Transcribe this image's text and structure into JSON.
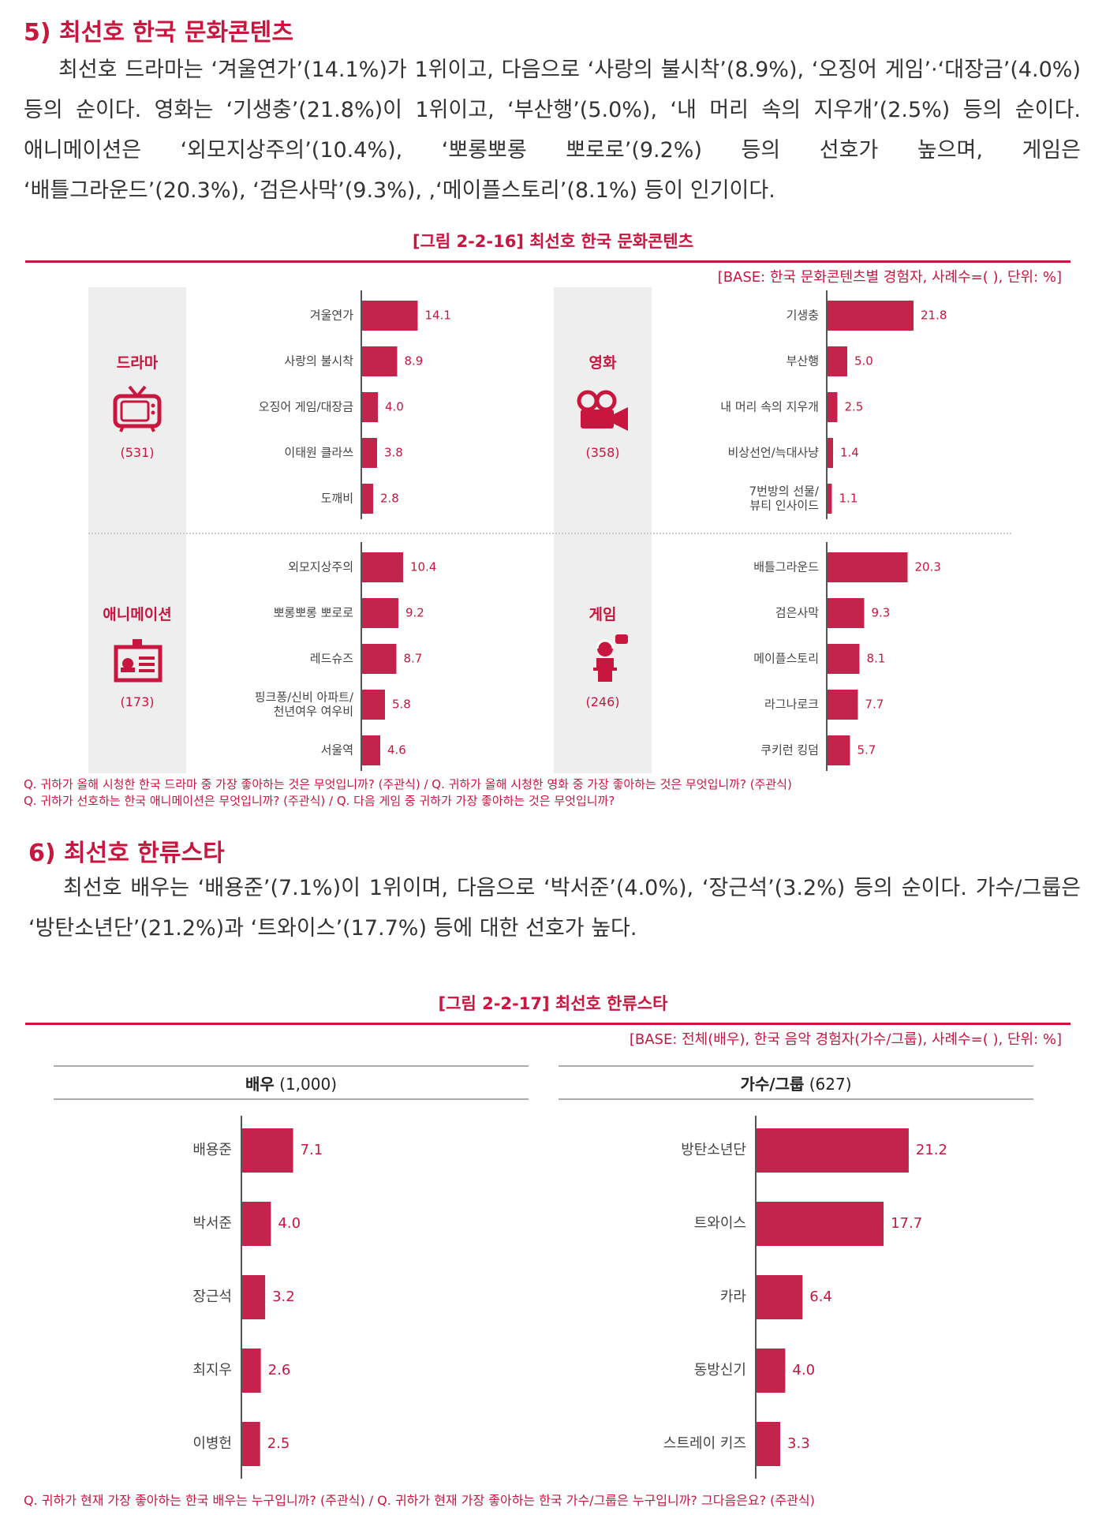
{
  "section5": {
    "title": "5) 최선호 한국 문화콘텐츠",
    "text": "최선호 드라마는 ‘겨울연가’(14.1%)가 1위이고, 다음으로 ‘사랑의 불시착’(8.9%), ‘오징어 게임’·‘대장금’(4.0%) 등의 순이다. 영화는 ‘기생충’(21.8%)이 1위이고, ‘부산행’(5.0%), ‘내 머리 속의 지우개’(2.5%) 등의 순이다. 애니메이션은 ‘외모지상주의’(10.4%), ‘뽀롱뽀롱 뽀로로’(9.2%) 등의 선호가 높으며, 게임은 ‘배틀그라운드’(20.3%), ‘검은사막’(9.3%), ,‘메이플스토리’(8.1%) 등이 인기이다."
  },
  "figure16": {
    "title": "[그림 2-2-16] 최선호 한국 문화콘텐츠",
    "base": "[BASE: 한국 문화콘텐츠별 경험자, 사례수=( ), 단위: %]",
    "notes": [
      "Q. 귀하가 올해 시청한 한국 드라마 중 가장 좋아하는 것은 무엇입니까? (주관식) / Q. 귀하가 올해 시청한 영화 중 가장 좋아하는 것은 무엇입니까? (주관식)",
      "Q. 귀하가 선호하는 한국 애니메이션은 무엇입니까? (주관식) / Q. 다음 게임 중 귀하가 가장 좋아하는 것은 무엇입니까?"
    ],
    "panels": [
      {
        "label": "드라마",
        "count": "(531)",
        "icon": "tv-icon"
      },
      {
        "label": "영화",
        "count": "(358)",
        "icon": "movie-camera-icon"
      },
      {
        "label": "애니메이션",
        "count": "(173)",
        "icon": "animation-board-icon"
      },
      {
        "label": "게임",
        "count": "(246)",
        "icon": "gamer-icon"
      }
    ]
  },
  "section6": {
    "title": "6) 최선호 한류스타",
    "text": "최선호 배우는 ‘배용준’(7.1%)이 1위이며, 다음으로 ‘박서준’(4.0%), ‘장근석’(3.2%) 등의 순이다. 가수/그룹은 ‘방탄소년단’(21.2%)과 ‘트와이스’(17.7%) 등에 대한 선호가 높다."
  },
  "figure17": {
    "title": "[그림 2-2-17] 최선호 한류스타",
    "base": "[BASE: 전체(배우), 한국 음악 경험자(가수/그룹), 사례수=( ), 단위: %]",
    "note": "Q. 귀하가 현재 가장 좋아하는 한국 배우는 누구입니까? (주관식) / Q. 귀하가 현재 가장 좋아하는 한국 가수/그룹은 누구입니까? 그다음은요? (주관식)",
    "actors_head": {
      "label": "배우",
      "count": "(1,000)"
    },
    "singers_head": {
      "label": "가수/그룹",
      "count": "(627)"
    }
  },
  "colors": {
    "accent": "#c8163f",
    "bar": "#c4244b",
    "panel_bg": "#eeeeee"
  },
  "chart_data": [
    {
      "type": "bar",
      "orientation": "horizontal",
      "title": "드라마",
      "unit": "%",
      "categories": [
        "겨울연가",
        "사랑의 불시착",
        "오징어 게임/대장금",
        "이태원 클라쓰",
        "도깨비"
      ],
      "values": [
        14.1,
        8.9,
        4.0,
        3.8,
        2.8
      ]
    },
    {
      "type": "bar",
      "orientation": "horizontal",
      "title": "영화",
      "unit": "%",
      "categories": [
        "기생충",
        "부산행",
        "내 머리 속의 지우개",
        "비상선언/늑대사냥",
        "7번방의 선물/뷰티 인사이드"
      ],
      "values": [
        21.8,
        5.0,
        2.5,
        1.4,
        1.1
      ]
    },
    {
      "type": "bar",
      "orientation": "horizontal",
      "title": "애니메이션",
      "unit": "%",
      "categories": [
        "외모지상주의",
        "뽀롱뽀롱 뽀로로",
        "레드슈즈",
        "핑크퐁/신비 아파트/천년여우 여우비",
        "서울역"
      ],
      "values": [
        10.4,
        9.2,
        8.7,
        5.8,
        4.6
      ]
    },
    {
      "type": "bar",
      "orientation": "horizontal",
      "title": "게임",
      "unit": "%",
      "categories": [
        "배틀그라운드",
        "검은사막",
        "메이플스토리",
        "라그나로크",
        "쿠키런 킹덤"
      ],
      "values": [
        20.3,
        9.3,
        8.1,
        7.7,
        5.7
      ]
    },
    {
      "type": "bar",
      "orientation": "horizontal",
      "title": "배우",
      "unit": "%",
      "categories": [
        "배용준",
        "박서준",
        "장근석",
        "최지우",
        "이병헌"
      ],
      "values": [
        7.1,
        4.0,
        3.2,
        2.6,
        2.5
      ]
    },
    {
      "type": "bar",
      "orientation": "horizontal",
      "title": "가수/그룹",
      "unit": "%",
      "categories": [
        "방탄소년단",
        "트와이스",
        "카라",
        "동방신기",
        "스트레이 키즈"
      ],
      "values": [
        21.2,
        17.7,
        6.4,
        4.0,
        3.3
      ]
    }
  ]
}
